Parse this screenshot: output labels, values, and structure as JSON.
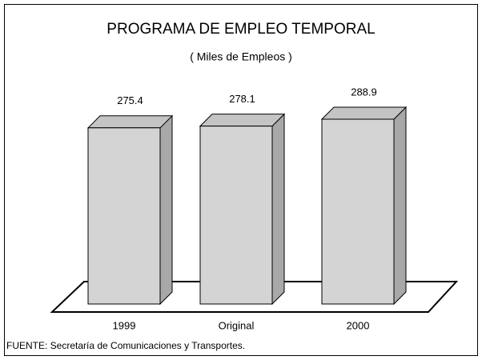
{
  "chart_data": {
    "type": "bar3d",
    "title": "PROGRAMA DE EMPLEO TEMPORAL",
    "subtitle": "( Miles de Empleos )",
    "categories": [
      "1999",
      "Original",
      "2000"
    ],
    "values": [
      275.4,
      278.1,
      288.9
    ],
    "color": "#d4d4d4",
    "source": "FUENTE: Secretaría de Comunicaciones y Transportes."
  }
}
